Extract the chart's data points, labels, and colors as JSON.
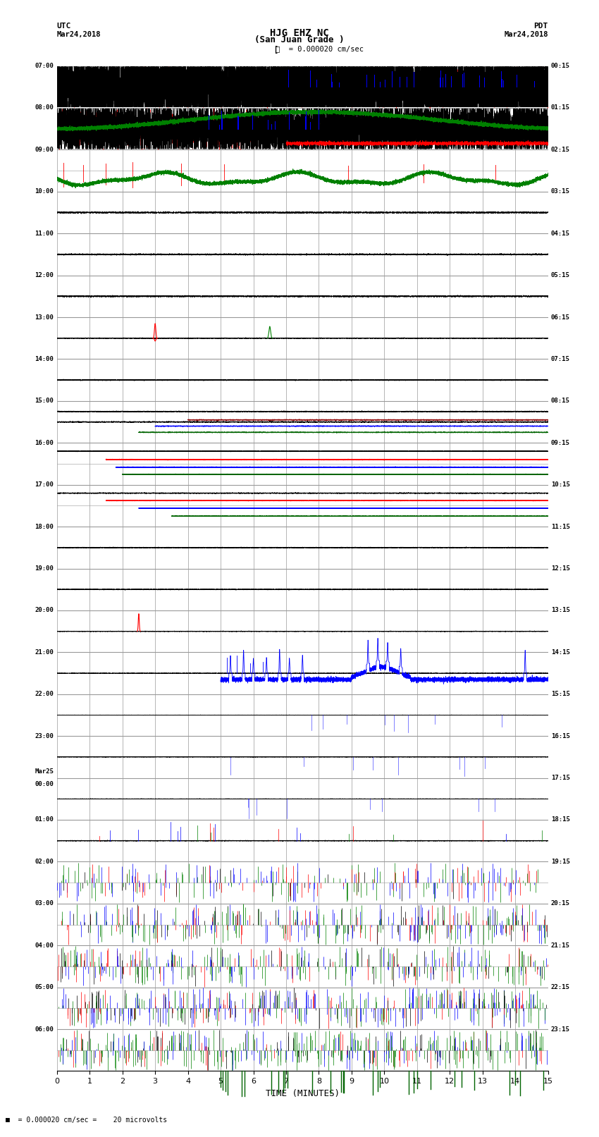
{
  "title_line1": "HJG EHZ NC",
  "title_line2": "(San Juan Grade )",
  "scale_label": "= 0.000020 cm/sec",
  "bottom_label": "= 0.000020 cm/sec =    20 microvolts",
  "utc_label": "UTC\nMar24,2018",
  "pdt_label": "PDT\nMar24,2018",
  "xlabel": "TIME (MINUTES)",
  "xlim": [
    0,
    15
  ],
  "background_color": "#ffffff",
  "grid_color": "#999999",
  "utc_times_left": [
    "07:00",
    "08:00",
    "09:00",
    "10:00",
    "11:00",
    "12:00",
    "13:00",
    "14:00",
    "15:00",
    "16:00",
    "17:00",
    "18:00",
    "19:00",
    "20:00",
    "21:00",
    "22:00",
    "23:00",
    "Mar25\n00:00",
    "01:00",
    "02:00",
    "03:00",
    "04:00",
    "05:00",
    "06:00"
  ],
  "pdt_times_right": [
    "00:15",
    "01:15",
    "02:15",
    "03:15",
    "04:15",
    "05:15",
    "06:15",
    "07:15",
    "08:15",
    "09:15",
    "10:15",
    "11:15",
    "12:15",
    "13:15",
    "14:15",
    "15:15",
    "16:15",
    "17:15",
    "18:15",
    "19:15",
    "20:15",
    "21:15",
    "22:15",
    "23:15"
  ],
  "num_rows": 24,
  "fig_width": 8.5,
  "fig_height": 16.13,
  "dpi": 100
}
